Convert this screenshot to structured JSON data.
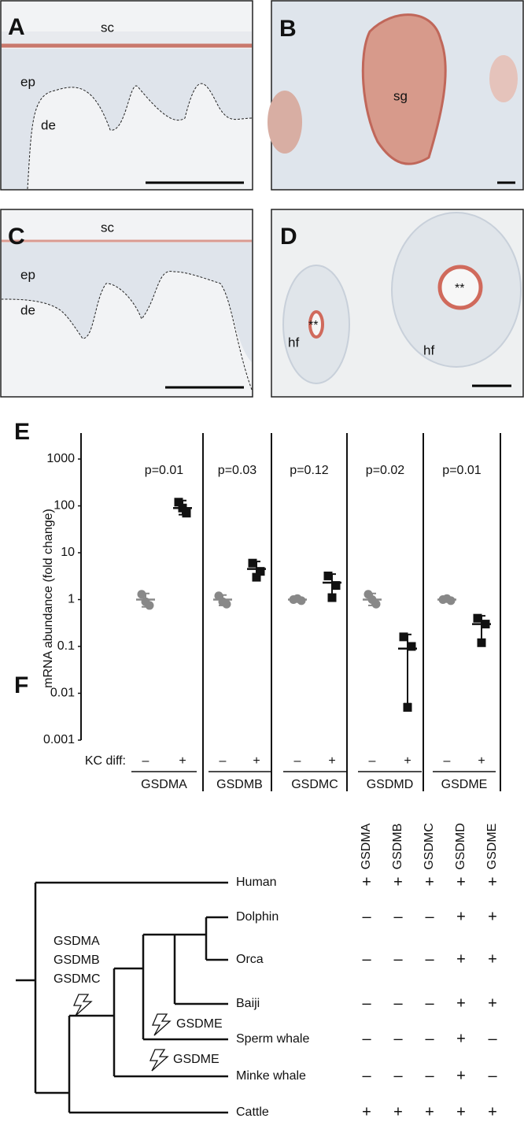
{
  "panels": [
    {
      "label": "A",
      "annotations": [
        "sc",
        "ep",
        "de"
      ]
    },
    {
      "label": "B",
      "annotations": [
        "sg"
      ]
    },
    {
      "label": "C",
      "annotations": [
        "sc",
        "ep",
        "de"
      ]
    },
    {
      "label": "D",
      "annotations": [
        "**",
        "**",
        "hf",
        "hf"
      ]
    }
  ],
  "chart_data": {
    "type": "scatter",
    "panel_label": "E",
    "y_label": "mRNA abundance (fold change)",
    "log": true,
    "ylim": [
      0.001,
      1000
    ],
    "yticks": [
      0.001,
      0.01,
      0.1,
      1,
      10,
      100,
      1000
    ],
    "x_label": "KC diff:",
    "conditions": [
      "–",
      "+"
    ],
    "series": [
      {
        "name": "–",
        "color": "#888888"
      },
      {
        "name": "+",
        "color": "#111111"
      }
    ],
    "groups": [
      {
        "gene": "GSDMA",
        "p": "p=0.01",
        "minus": {
          "points": [
            1.3,
            0.75,
            0.9
          ],
          "mean": 1,
          "low": 0.7,
          "high": 1.35
        },
        "plus": {
          "points": [
            120,
            70,
            90
          ],
          "mean": 90,
          "low": 65,
          "high": 130
        }
      },
      {
        "gene": "GSDMB",
        "p": "p=0.03",
        "minus": {
          "points": [
            1.2,
            0.8,
            0.9
          ],
          "mean": 1,
          "low": 0.75,
          "high": 1.25
        },
        "plus": {
          "points": [
            6,
            4,
            3
          ],
          "mean": 4.5,
          "low": 3,
          "high": 6.5
        }
      },
      {
        "gene": "GSDMC",
        "p": "p=0.12",
        "minus": {
          "points": [
            1,
            0.95,
            1.05
          ],
          "mean": 1,
          "low": 0.93,
          "high": 1.07
        },
        "plus": {
          "points": [
            3.2,
            2,
            1.1
          ],
          "mean": 2.3,
          "low": 1,
          "high": 3.5
        }
      },
      {
        "gene": "GSDMD",
        "p": "p=0.02",
        "minus": {
          "points": [
            1.3,
            0.8,
            1
          ],
          "mean": 1,
          "low": 0.75,
          "high": 1.35
        },
        "plus": {
          "points": [
            0.16,
            0.1,
            0.005
          ],
          "mean": 0.09,
          "low": 0.006,
          "high": 0.18
        }
      },
      {
        "gene": "GSDME",
        "p": "p=0.01",
        "minus": {
          "points": [
            1,
            0.95,
            1.05
          ],
          "mean": 1,
          "low": 0.93,
          "high": 1.07
        },
        "plus": {
          "points": [
            0.4,
            0.3,
            0.12
          ],
          "mean": 0.3,
          "low": 0.12,
          "high": 0.45
        }
      }
    ]
  },
  "tree": {
    "panel_label": "F",
    "genes": [
      "GSDMA",
      "GSDMB",
      "GSDMC",
      "GSDMD",
      "GSDME"
    ],
    "species": [
      "Human",
      "Dolphin",
      "Orca",
      "Baiji",
      "Sperm whale",
      "Minke whale",
      "Cattle"
    ],
    "matrix": [
      [
        "+",
        "+",
        "+",
        "+",
        "+"
      ],
      [
        "–",
        "–",
        "–",
        "+",
        "+"
      ],
      [
        "–",
        "–",
        "–",
        "+",
        "+"
      ],
      [
        "–",
        "–",
        "–",
        "+",
        "+"
      ],
      [
        "–",
        "–",
        "–",
        "+",
        "–"
      ],
      [
        "–",
        "–",
        "–",
        "+",
        "–"
      ],
      [
        "+",
        "+",
        "+",
        "+",
        "+"
      ]
    ],
    "ancestral_labels": [
      "GSDMA",
      "GSDMB",
      "GSDMC"
    ],
    "loss_labels": [
      "GSDME",
      "GSDME"
    ]
  }
}
